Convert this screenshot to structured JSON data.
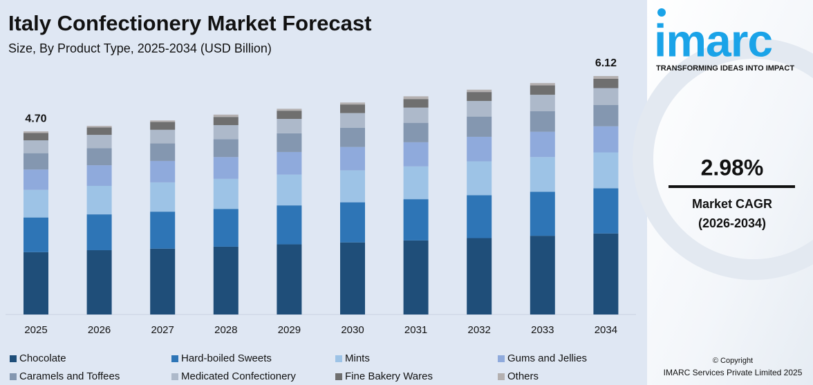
{
  "chart_data": {
    "type": "stacked_bar",
    "title": "Italy Confectionery Market Forecast",
    "subtitle": "Size, By Product Type, 2025-2034 (USD Billion)",
    "categories": [
      "2025",
      "2026",
      "2027",
      "2028",
      "2029",
      "2030",
      "2031",
      "2032",
      "2033",
      "2034"
    ],
    "series": [
      {
        "name": "Chocolate",
        "color": "#1f4e79",
        "values": [
          1.6,
          1.65,
          1.69,
          1.74,
          1.8,
          1.85,
          1.9,
          1.96,
          2.02,
          2.08
        ]
      },
      {
        "name": "Hard-boiled Sweets",
        "color": "#2e75b6",
        "values": [
          0.89,
          0.92,
          0.95,
          0.97,
          1.0,
          1.03,
          1.06,
          1.1,
          1.13,
          1.16
        ]
      },
      {
        "name": "Mints",
        "color": "#9dc3e6",
        "values": [
          0.71,
          0.73,
          0.75,
          0.77,
          0.79,
          0.82,
          0.84,
          0.87,
          0.89,
          0.92
        ]
      },
      {
        "name": "Gums and Jellies",
        "color": "#8faadc",
        "values": [
          0.52,
          0.53,
          0.55,
          0.56,
          0.58,
          0.6,
          0.62,
          0.63,
          0.65,
          0.67
        ]
      },
      {
        "name": "Caramels and Toffees",
        "color": "#8497b0",
        "values": [
          0.42,
          0.44,
          0.45,
          0.46,
          0.48,
          0.49,
          0.5,
          0.52,
          0.53,
          0.55
        ]
      },
      {
        "name": "Medicated Confectionery",
        "color": "#adb9ca",
        "values": [
          0.33,
          0.34,
          0.35,
          0.36,
          0.37,
          0.38,
          0.39,
          0.4,
          0.42,
          0.43
        ]
      },
      {
        "name": "Fine Bakery Wares",
        "color": "#6f6f6f",
        "values": [
          0.19,
          0.19,
          0.2,
          0.21,
          0.21,
          0.22,
          0.22,
          0.23,
          0.24,
          0.24
        ]
      },
      {
        "name": "Others",
        "color": "#b4b0b0",
        "values": [
          0.04,
          0.04,
          0.04,
          0.06,
          0.05,
          0.05,
          0.07,
          0.06,
          0.06,
          0.07
        ]
      }
    ],
    "annotations": [
      {
        "category": "2025",
        "value": 4.7,
        "label": "4.70"
      },
      {
        "category": "2034",
        "value": 6.12,
        "label": "6.12"
      }
    ]
  },
  "sidebar": {
    "logo": "imarc",
    "tagline": "TRANSFORMING IDEAS INTO IMPACT",
    "cagr": "2.98%",
    "cagr_label": "Market CAGR",
    "cagr_period": "(2026-2034)",
    "copyright": "© Copyright",
    "company": "IMARC Services Private Limited 2025"
  }
}
